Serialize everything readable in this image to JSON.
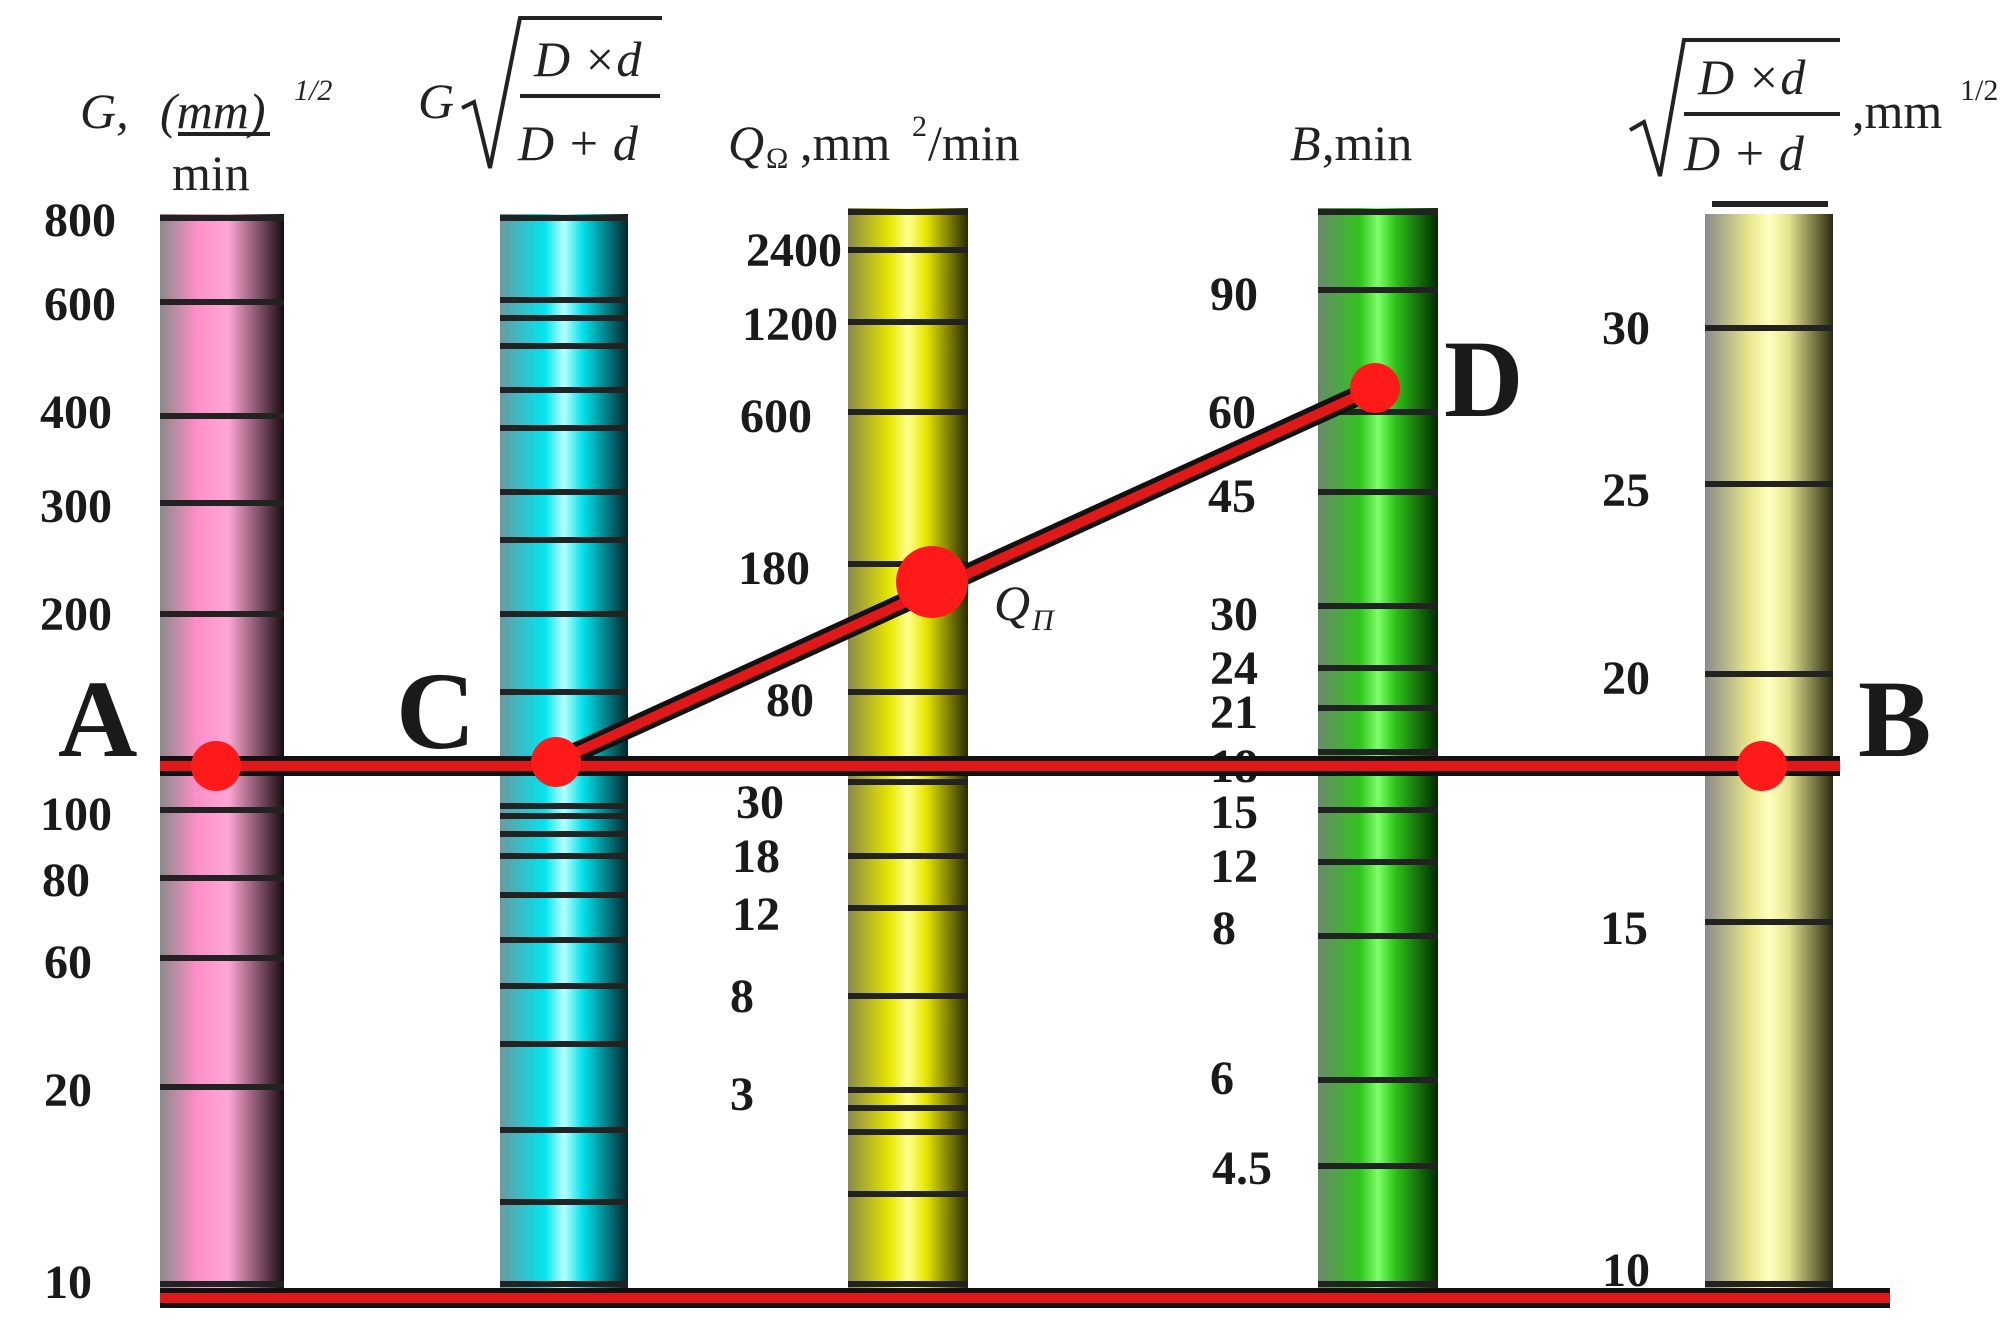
{
  "headers": {
    "g": {
      "symbol": "G,",
      "unit": "(mm)",
      "exp": "1/2",
      "den": "min"
    },
    "gsqrt": {
      "g": "G",
      "num": "D ×d",
      "den": "D + d"
    },
    "q": {
      "symbol": "Q",
      "sub": "Ω",
      "unit": ",mm",
      "exp": "2",
      "unit2": "/min"
    },
    "b": {
      "symbol": "B",
      "unit": ",min"
    },
    "sqrt": {
      "num": "D ×d",
      "den": "D + d",
      "unit": ",mm",
      "exp": "1/2"
    }
  },
  "scales": {
    "g_labels": [
      "800",
      "600",
      "400",
      "300",
      "200",
      "100",
      "80",
      "60",
      "20",
      "10"
    ],
    "q_labels": [
      "2400",
      "1200",
      "600",
      "180",
      "80",
      "30",
      "18",
      "12",
      "8",
      "3"
    ],
    "b_labels": [
      "90",
      "60",
      "45",
      "30",
      "24",
      "21",
      "18",
      "15",
      "12",
      "8",
      "6",
      "4.5"
    ],
    "s_labels": [
      "30",
      "25",
      "20",
      "15",
      "10"
    ]
  },
  "points": {
    "a": "A",
    "b": "B",
    "c": "C",
    "d": "D",
    "qp": {
      "symbol": "Q",
      "sub": "П"
    }
  },
  "colors": {
    "column1": "#ff8fc8",
    "column2": "#00e5ee",
    "column3": "#f2f200",
    "column4": "#2fc51c",
    "column5": "#f4f49a",
    "line": "#e01818",
    "dot": "#ff1a1a",
    "tick": "#222222"
  }
}
